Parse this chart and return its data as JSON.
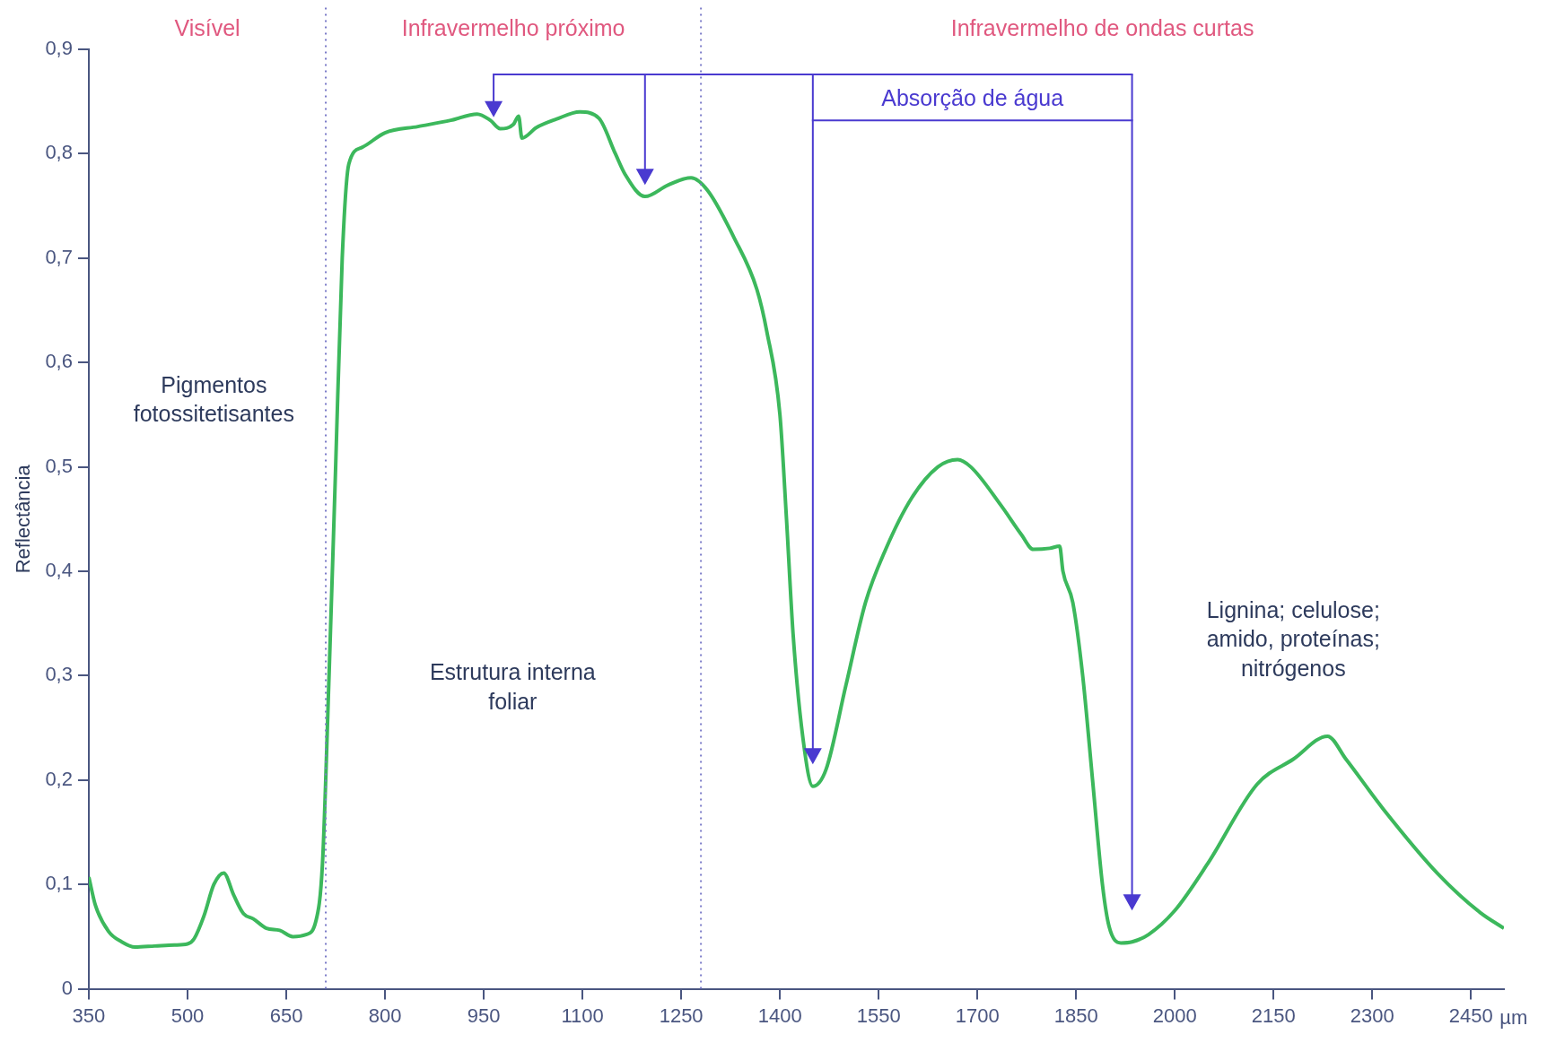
{
  "chart_data": {
    "type": "line",
    "xlabel": "µm",
    "ylabel": "Reflectância",
    "annotations": [
      "Visível",
      "Infravermelho próximo",
      "Infravermelho de ondas curtas",
      "Absorção de água",
      "Pigmentos fotossitetisantes",
      "Estrutura interna foliar",
      "Lignina; celulose; amido, proteínas; nitrógenos"
    ],
    "x": [
      350,
      360,
      380,
      400,
      420,
      450,
      480,
      500,
      510,
      525,
      540,
      555,
      570,
      585,
      600,
      620,
      640,
      660,
      680,
      695,
      705,
      715,
      725,
      735,
      745,
      765,
      800,
      850,
      900,
      940,
      960,
      975,
      995,
      1003,
      1008,
      1030,
      1060,
      1096,
      1125,
      1150,
      1165,
      1195,
      1230,
      1265,
      1290,
      1330,
      1365,
      1380,
      1400,
      1410,
      1420,
      1435,
      1450,
      1470,
      1500,
      1530,
      1560,
      1600,
      1640,
      1670,
      1690,
      1736,
      1767,
      1785,
      1810,
      1825,
      1830,
      1845,
      1860,
      1875,
      1890,
      1900,
      1918,
      1935,
      1960,
      2000,
      2050,
      2125,
      2180,
      2232,
      2260,
      2317,
      2400,
      2464,
      2500
    ],
    "series": [
      {
        "color": "#3cb85c",
        "values": [
          0.107,
          0.08,
          0.055,
          0.045,
          0.04,
          0.041,
          0.042,
          0.043,
          0.048,
          0.07,
          0.1,
          0.111,
          0.09,
          0.072,
          0.067,
          0.058,
          0.056,
          0.05,
          0.052,
          0.065,
          0.12,
          0.3,
          0.5,
          0.7,
          0.79,
          0.806,
          0.82,
          0.826,
          0.832,
          0.838,
          0.832,
          0.824,
          0.828,
          0.836,
          0.815,
          0.825,
          0.833,
          0.84,
          0.834,
          0.8,
          0.78,
          0.759,
          0.77,
          0.777,
          0.765,
          0.72,
          0.67,
          0.63,
          0.55,
          0.45,
          0.34,
          0.24,
          0.194,
          0.21,
          0.29,
          0.37,
          0.42,
          0.47,
          0.5,
          0.507,
          0.5,
          0.463,
          0.435,
          0.421,
          0.422,
          0.424,
          0.4,
          0.37,
          0.3,
          0.2,
          0.1,
          0.06,
          0.044,
          0.045,
          0.052,
          0.075,
          0.12,
          0.196,
          0.22,
          0.242,
          0.22,
          0.172,
          0.11,
          0.073,
          0.058
        ]
      }
    ],
    "xlim": [
      350,
      2500
    ],
    "xticks": [
      350,
      500,
      650,
      800,
      950,
      1100,
      1250,
      1400,
      1550,
      1700,
      1850,
      2000,
      2150,
      2300,
      2450
    ],
    "ylim": [
      0,
      0.9
    ],
    "yticks": [
      0,
      {
        "value": 0.1,
        "label": "0,1"
      },
      {
        "value": 0.2,
        "label": "0,2"
      },
      {
        "value": 0.3,
        "label": "0,3"
      },
      {
        "value": 0.4,
        "label": "0,4"
      },
      {
        "value": 0.5,
        "label": "0,5"
      },
      {
        "value": 0.6,
        "label": "0,6"
      },
      {
        "value": 0.7,
        "label": "0,7"
      },
      {
        "value": 0.8,
        "label": "0,8"
      },
      {
        "value": 0.9,
        "label": "0,9"
      }
    ],
    "ref_lines": [
      {
        "axis": "x",
        "value": 710,
        "line_style": "dotted",
        "color": "#7a7ac8"
      },
      {
        "axis": "x",
        "value": 1280,
        "line_style": "dotted",
        "color": "#7a7ac8"
      },
      {
        "axis": "x",
        "value": 1450,
        "line_style": "solid",
        "color": "#4a3ad0"
      },
      {
        "axis": "x",
        "value": 1935,
        "line_style": "solid",
        "color": "#4a3ad0"
      }
    ],
    "grid": false,
    "legend": false,
    "marker": "none",
    "line_style": "solid"
  }
}
